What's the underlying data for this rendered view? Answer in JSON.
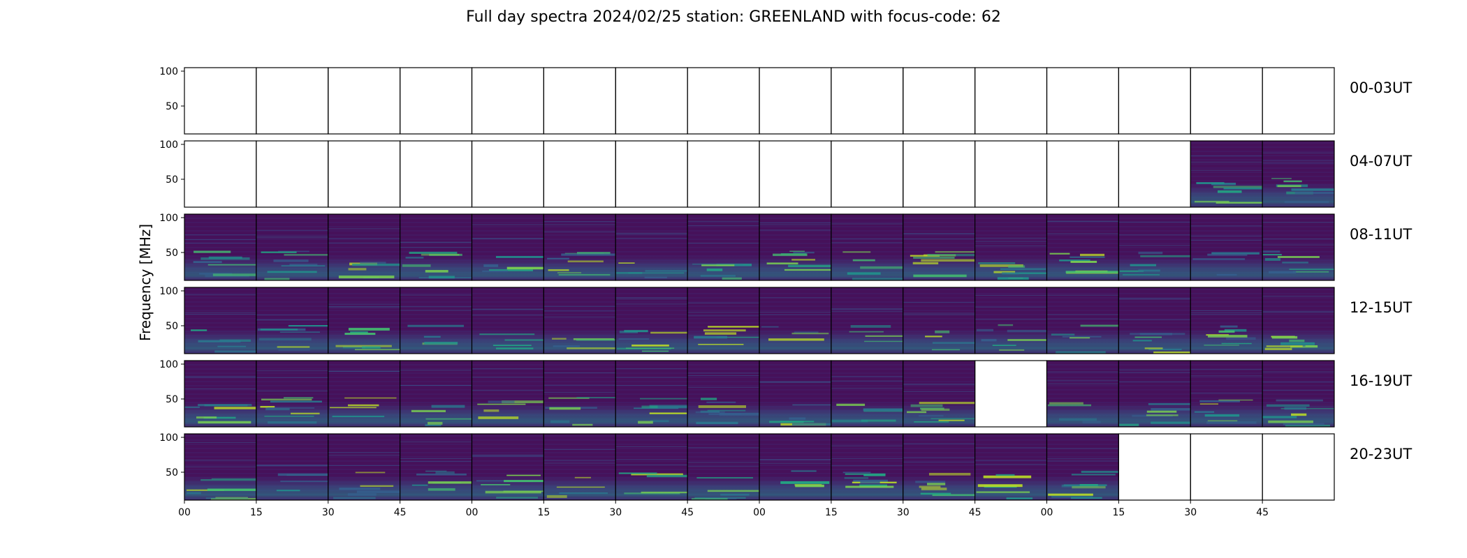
{
  "chart_data": {
    "type": "heatmap",
    "title": "Full day spectra 2024/02/25 station: GREENLAND with focus-code: 62",
    "ylabel": "Frequency [MHz]",
    "ylim": [
      10,
      105
    ],
    "ytick_labels": [
      "50",
      "100"
    ],
    "xtick_labels": [
      "00",
      "15",
      "30",
      "45",
      "00",
      "15",
      "30",
      "45",
      "00",
      "15",
      "30",
      "45",
      "00",
      "15",
      "30",
      "45"
    ],
    "colormap": "viridis",
    "rows": [
      {
        "label": "00-03UT",
        "panels": [
          0,
          0,
          0,
          0,
          0,
          0,
          0,
          0,
          0,
          0,
          0,
          0,
          0,
          0,
          0,
          0
        ]
      },
      {
        "label": "04-07UT",
        "panels": [
          0,
          0,
          0,
          0,
          0,
          0,
          0,
          0,
          0,
          0,
          0,
          0,
          0,
          0,
          1,
          1
        ]
      },
      {
        "label": "08-11UT",
        "panels": [
          1,
          1,
          1,
          1,
          1,
          1,
          1,
          1,
          1,
          1,
          1,
          1,
          1,
          1,
          1,
          1
        ]
      },
      {
        "label": "12-15UT",
        "panels": [
          1,
          1,
          1,
          1,
          1,
          1,
          1,
          1,
          1,
          1,
          1,
          1,
          1,
          1,
          1,
          1
        ]
      },
      {
        "label": "16-19UT",
        "panels": [
          1,
          1,
          1,
          1,
          1,
          1,
          1,
          1,
          1,
          1,
          1,
          0,
          1,
          1,
          1,
          1
        ]
      },
      {
        "label": "20-23UT",
        "panels": [
          1,
          1,
          1,
          1,
          1,
          1,
          1,
          1,
          1,
          1,
          1,
          1,
          1,
          0,
          0,
          0
        ]
      }
    ]
  }
}
